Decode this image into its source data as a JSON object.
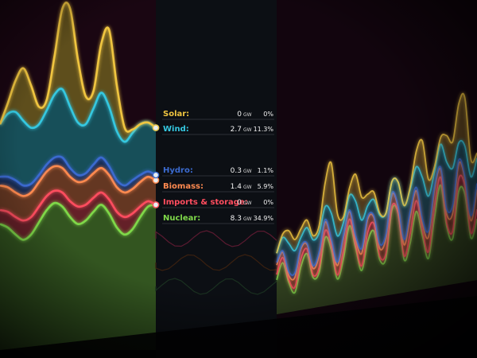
{
  "chart_data": {
    "type": "area",
    "stacked": true,
    "cursor_index": 20,
    "series": [
      {
        "name": "Nuclear:",
        "color": "#7fd84a",
        "values": [
          7.2,
          7.0,
          6.6,
          6.3,
          6.6,
          7.3,
          8.0,
          8.4,
          8.2,
          7.6,
          7.2,
          7.4,
          7.9,
          8.3,
          7.8,
          7.0,
          6.6,
          6.9,
          7.6,
          8.2,
          8.3
        ]
      },
      {
        "name": "Imports & storage:",
        "color": "#ff4d5e",
        "values": [
          0.8,
          0.9,
          1.0,
          1.1,
          1.0,
          0.9,
          0.8,
          0.7,
          0.8,
          0.9,
          1.0,
          0.9,
          0.8,
          0.7,
          0.8,
          0.9,
          1.0,
          0.9,
          0.6,
          0.3,
          0.0
        ]
      },
      {
        "name": "Biomass:",
        "color": "#ff8a50",
        "values": [
          1.4,
          1.4,
          1.4,
          1.4,
          1.4,
          1.4,
          1.4,
          1.4,
          1.4,
          1.4,
          1.4,
          1.4,
          1.4,
          1.4,
          1.4,
          1.4,
          1.4,
          1.4,
          1.4,
          1.4,
          1.4
        ]
      },
      {
        "name": "Hydro:",
        "color": "#3b6bd0",
        "values": [
          0.5,
          0.6,
          0.7,
          0.6,
          0.5,
          0.4,
          0.4,
          0.5,
          0.6,
          0.5,
          0.4,
          0.4,
          0.5,
          0.6,
          0.5,
          0.4,
          0.4,
          0.5,
          0.4,
          0.3,
          0.3
        ]
      },
      {
        "name": "Wind:",
        "color": "#35c8e0",
        "values": [
          3.0,
          3.6,
          3.9,
          3.7,
          3.2,
          2.9,
          3.1,
          3.6,
          3.9,
          3.5,
          3.0,
          2.8,
          3.2,
          3.7,
          3.4,
          2.8,
          2.5,
          2.7,
          2.9,
          2.8,
          2.7
        ]
      },
      {
        "name": "Solar:",
        "color": "#f0c540",
        "values": [
          0.0,
          0.6,
          1.8,
          3.0,
          2.4,
          1.0,
          0.6,
          2.2,
          4.6,
          5.6,
          3.6,
          1.6,
          1.0,
          2.8,
          4.4,
          2.6,
          0.8,
          0.2,
          0.0,
          0.0,
          0.0
        ]
      }
    ],
    "readout": [
      {
        "label": "Solar:",
        "value": "0",
        "unit": "GW",
        "percent": "0%"
      },
      {
        "label": "Wind:",
        "value": "2.7",
        "unit": "GW",
        "percent": "11.3%"
      },
      {
        "label": "Hydro:",
        "value": "0.3",
        "unit": "GW",
        "percent": "1.1%"
      },
      {
        "label": "Biomass:",
        "value": "1.4",
        "unit": "GW",
        "percent": "5.9%"
      },
      {
        "label": "Imports & storage:",
        "value": "0",
        "unit": "GW",
        "percent": "0%"
      },
      {
        "label": "Nuclear:",
        "value": "8.3",
        "unit": "GW",
        "percent": "34.9%"
      }
    ],
    "colors": {
      "background": "#050608",
      "panel": "#0d1016",
      "cursor": "#ff3b6a",
      "above": "#1a0612"
    }
  }
}
